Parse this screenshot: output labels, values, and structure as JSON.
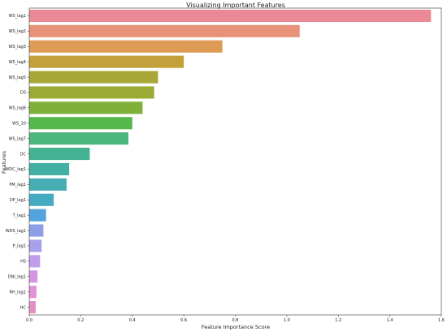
{
  "chart_data": {
    "type": "bar",
    "orientation": "horizontal",
    "title": "Visualizing Important Features",
    "xlabel": "Feature Importance Score",
    "ylabel": "Features",
    "xlim": [
      0,
      1.6
    ],
    "xticks": [
      0.0,
      0.2,
      0.4,
      0.6,
      0.8,
      1.0,
      1.2,
      1.4,
      1.6
    ],
    "xtick_labels": [
      "0.0",
      "0.2",
      "0.4",
      "0.6",
      "0.8",
      "1.0",
      "1.2",
      "1.4",
      "1.6"
    ],
    "grid": false,
    "legend": "none",
    "categories": [
      "WS_lag1",
      "WS_lag2",
      "WS_lag3",
      "WS_lag4",
      "WS_lag5",
      "DS",
      "WS_lag6",
      "WS_10",
      "WS_lag7",
      "DC",
      "WDC_lag1",
      "PM_lag1",
      "DP_lag1",
      "T_lag1",
      "WDS_lag1",
      "P_lag1",
      "HS",
      "DNI_lag1",
      "RH_lag1",
      "HC"
    ],
    "values": [
      1.56,
      1.05,
      0.75,
      0.6,
      0.5,
      0.485,
      0.44,
      0.4,
      0.385,
      0.235,
      0.155,
      0.145,
      0.095,
      0.065,
      0.055,
      0.048,
      0.042,
      0.032,
      0.028,
      0.025
    ],
    "colors": [
      "#ea8a96",
      "#e8927a",
      "#de9b55",
      "#c4a03a",
      "#a9a738",
      "#9aaa35",
      "#7fb03a",
      "#55b84c",
      "#4bb57b",
      "#45b393",
      "#44afa5",
      "#45adb3",
      "#45aac2",
      "#54a2de",
      "#8c9fe6",
      "#a8a0ea",
      "#c29deb",
      "#d496e4",
      "#e191d6",
      "#e690c2"
    ]
  }
}
